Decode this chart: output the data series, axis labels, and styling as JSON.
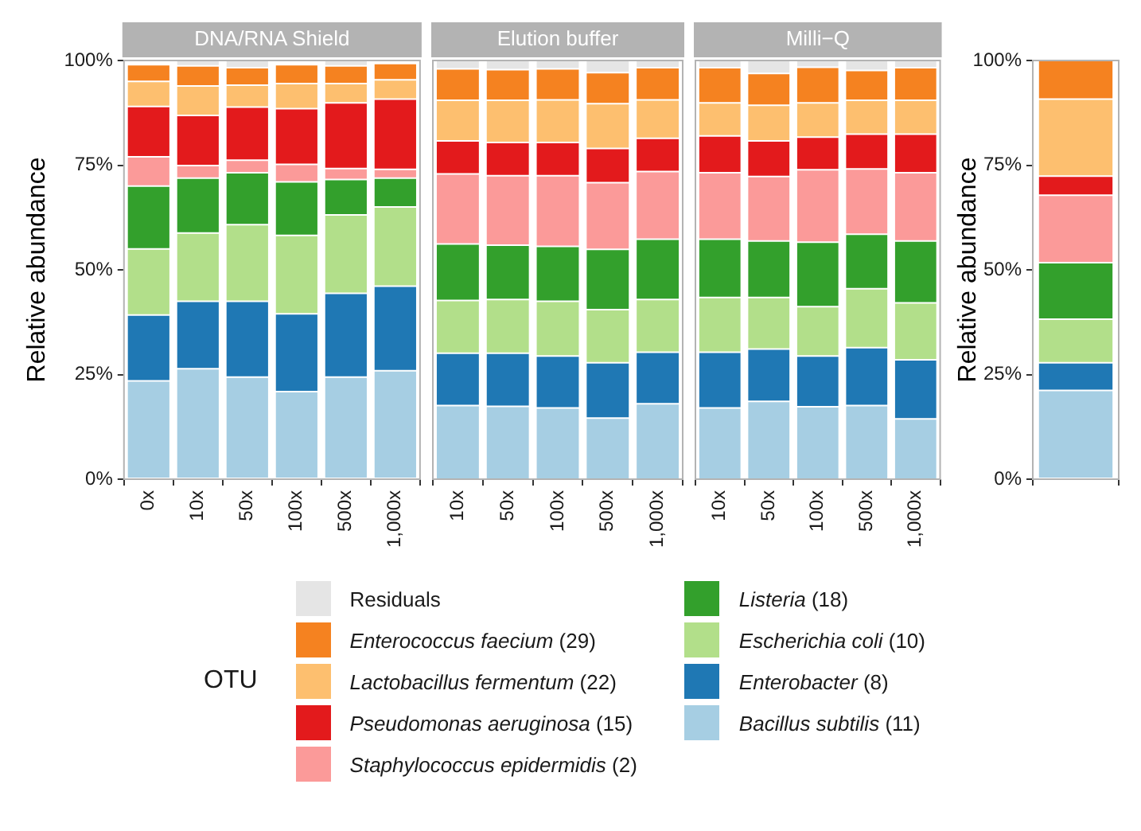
{
  "chart_data": [
    {
      "type": "bar",
      "title": "DNA/RNA Shield",
      "ylabel": "Relative abundance",
      "legend_title": "OTU",
      "legend": "bottom",
      "stacked": true,
      "tick_labels": true,
      "categories": [
        "0x",
        "10x",
        "50x",
        "100x",
        "500x",
        "1,000x"
      ],
      "ylim": [
        0,
        100
      ],
      "yticks": [
        {
          "value": 0,
          "label": "0%"
        },
        {
          "value": 25,
          "label": "25%"
        },
        {
          "value": 50,
          "label": "50%"
        },
        {
          "value": 75,
          "label": "75%"
        },
        {
          "value": 100,
          "label": "100%"
        }
      ],
      "series": [
        {
          "name": "Bacillus subtilis (11)",
          "color": "#a6cee3",
          "values": [
            23.5,
            26.4,
            24.4,
            20.9,
            24.4,
            25.9
          ]
        },
        {
          "name": "Enterobacter (8)",
          "color": "#1f78b4",
          "values": [
            15.7,
            16.1,
            18.1,
            18.6,
            20,
            20.2
          ]
        },
        {
          "name": "Escherichia coli (10)",
          "color": "#b2df8a",
          "values": [
            15.8,
            16.3,
            18.3,
            18.7,
            18.7,
            18.9
          ]
        },
        {
          "name": "Listeria (18)",
          "color": "#33a02c",
          "values": [
            15,
            13.1,
            12.4,
            12.8,
            8.5,
            6.9
          ]
        },
        {
          "name": "Staphylococcus epidermidis (2)",
          "color": "#fb9a99",
          "values": [
            7,
            3,
            3,
            4.2,
            2.6,
            2.1
          ]
        },
        {
          "name": "Pseudomonas aeruginosa (15)",
          "color": "#e31a1c",
          "values": [
            12,
            12,
            12.7,
            13.3,
            15.7,
            16.8
          ]
        },
        {
          "name": "Lactobacillus fermentum (22)",
          "color": "#fdbf6f",
          "values": [
            6,
            7,
            5.2,
            6,
            4.6,
            4.6
          ]
        },
        {
          "name": "Enterococcus faecium (29)",
          "color": "#f58220",
          "values": [
            4,
            4.8,
            4.2,
            4.5,
            4.2,
            3.9
          ]
        },
        {
          "name": "Residuals",
          "color": "#e5e5e5",
          "values": [
            null,
            1.3,
            1.7,
            null,
            1.3,
            null
          ]
        }
      ]
    },
    {
      "type": "bar",
      "title": "Elution buffer",
      "stacked": true,
      "tick_labels": "x",
      "categories": [
        "10x",
        "50x",
        "100x",
        "500x",
        "1,000x"
      ],
      "ylim": [
        0,
        100
      ],
      "series": [
        {
          "color": "#a6cee3",
          "values": [
            17.6,
            17.4,
            17,
            14.6,
            18
          ]
        },
        {
          "color": "#1f78b4",
          "values": [
            12.5,
            12.7,
            12.4,
            13.2,
            12.3
          ]
        },
        {
          "color": "#b2df8a",
          "values": [
            12.6,
            12.8,
            13.1,
            12.7,
            12.6
          ]
        },
        {
          "color": "#33a02c",
          "values": [
            13.5,
            13,
            13.1,
            14.4,
            14.4
          ]
        },
        {
          "color": "#fb9a99",
          "values": [
            16.7,
            16.6,
            16.9,
            15.9,
            16.2
          ]
        },
        {
          "color": "#e31a1c",
          "values": [
            7.9,
            7.9,
            7.9,
            8.2,
            7.9
          ]
        },
        {
          "color": "#fdbf6f",
          "values": [
            9.7,
            10.1,
            10.2,
            10.7,
            9.2
          ]
        },
        {
          "color": "#f58220",
          "values": [
            7.5,
            7.3,
            7.4,
            7.4,
            7.7
          ]
        },
        {
          "color": "#e5e5e5",
          "values": [
            2,
            2.2,
            2,
            2.9,
            1.7
          ]
        }
      ]
    },
    {
      "type": "bar",
      "title": "Milli−Q",
      "stacked": true,
      "tick_labels": "x",
      "categories": [
        "10x",
        "50x",
        "100x",
        "500x",
        "1,000x"
      ],
      "ylim": [
        0,
        100
      ],
      "series": [
        {
          "color": "#a6cee3",
          "values": [
            17,
            18.6,
            17.3,
            17.6,
            14.4
          ]
        },
        {
          "color": "#1f78b4",
          "values": [
            13.3,
            12.5,
            12.1,
            13.8,
            14.1
          ]
        },
        {
          "color": "#b2df8a",
          "values": [
            13.1,
            12.3,
            11.8,
            14.1,
            13.6
          ]
        },
        {
          "color": "#33a02c",
          "values": [
            13.9,
            13.5,
            15.4,
            13,
            14.8
          ]
        },
        {
          "color": "#fb9a99",
          "values": [
            15.9,
            15.4,
            17.3,
            15.6,
            16.3
          ]
        },
        {
          "color": "#e31a1c",
          "values": [
            8.8,
            8.5,
            7.8,
            8.3,
            9.2
          ]
        },
        {
          "color": "#fdbf6f",
          "values": [
            7.9,
            8.5,
            8.2,
            8.1,
            8.1
          ]
        },
        {
          "color": "#f58220",
          "values": [
            8.4,
            7.6,
            8.5,
            7.1,
            7.8
          ]
        },
        {
          "color": "#e5e5e5",
          "values": [
            1.7,
            3.1,
            1.6,
            2.4,
            1.7
          ]
        }
      ]
    },
    {
      "type": "bar",
      "ylabel": "Relative abundance",
      "stacked": true,
      "tick_labels": true,
      "categories": [
        null
      ],
      "ylim": [
        0,
        100
      ],
      "yticks": [
        {
          "value": 0,
          "label": "0%"
        },
        {
          "value": 25,
          "label": "25%"
        },
        {
          "value": 50,
          "label": "50%"
        },
        {
          "value": 75,
          "label": "75%"
        },
        {
          "value": 100,
          "label": "100%"
        }
      ],
      "series": [
        {
          "color": "#a6cee3",
          "values": [
            21.2
          ]
        },
        {
          "color": "#1f78b4",
          "values": [
            6.6
          ]
        },
        {
          "color": "#b2df8a",
          "values": [
            10.4
          ]
        },
        {
          "color": "#33a02c",
          "values": [
            13.5
          ]
        },
        {
          "color": "#fb9a99",
          "values": [
            16.1
          ]
        },
        {
          "color": "#e31a1c",
          "values": [
            4.6
          ]
        },
        {
          "color": "#fdbf6f",
          "values": [
            18.4
          ]
        },
        {
          "color": "#f58220",
          "values": [
            9.2
          ]
        },
        {
          "color": "#e5e5e5",
          "values": [
            0
          ]
        }
      ]
    }
  ]
}
